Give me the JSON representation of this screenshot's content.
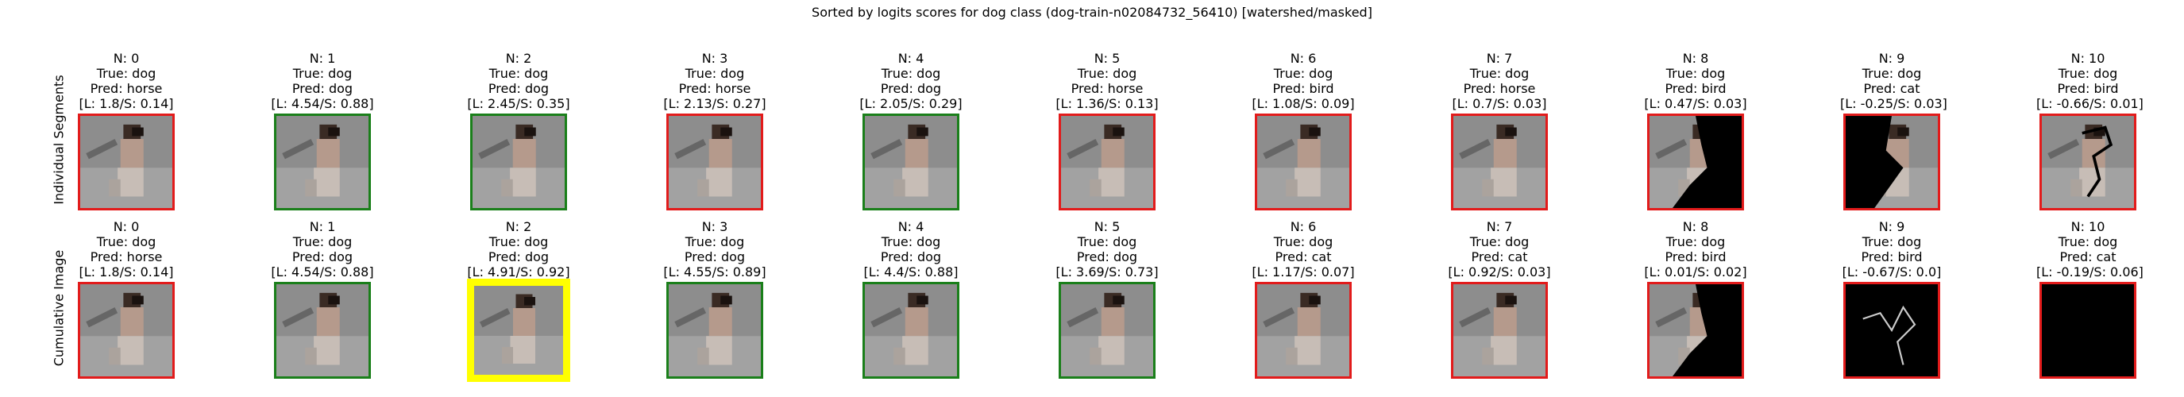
{
  "title": "Sorted by logits scores for dog class (dog-train-n02084732_56410) [watershed/masked]",
  "rows": [
    {
      "label": "Individual Segments",
      "cells": [
        {
          "n": "N: 0",
          "true": "True: dog",
          "pred": "Pred: horse",
          "score": "[L: 1.8/S: 0.14]",
          "frame": "red",
          "mask": "none"
        },
        {
          "n": "N: 1",
          "true": "True: dog",
          "pred": "Pred: dog",
          "score": "[L: 4.54/S: 0.88]",
          "frame": "green",
          "mask": "none"
        },
        {
          "n": "N: 2",
          "true": "True: dog",
          "pred": "Pred: dog",
          "score": "[L: 2.45/S: 0.35]",
          "frame": "green",
          "mask": "none"
        },
        {
          "n": "N: 3",
          "true": "True: dog",
          "pred": "Pred: horse",
          "score": "[L: 2.13/S: 0.27]",
          "frame": "red",
          "mask": "none"
        },
        {
          "n": "N: 4",
          "true": "True: dog",
          "pred": "Pred: dog",
          "score": "[L: 2.05/S: 0.29]",
          "frame": "green",
          "mask": "none"
        },
        {
          "n": "N: 5",
          "true": "True: dog",
          "pred": "Pred: horse",
          "score": "[L: 1.36/S: 0.13]",
          "frame": "red",
          "mask": "none"
        },
        {
          "n": "N: 6",
          "true": "True: dog",
          "pred": "Pred: bird",
          "score": "[L: 1.08/S: 0.09]",
          "frame": "red",
          "mask": "none"
        },
        {
          "n": "N: 7",
          "true": "True: dog",
          "pred": "Pred: horse",
          "score": "[L: 0.7/S: 0.03]",
          "frame": "red",
          "mask": "none"
        },
        {
          "n": "N: 8",
          "true": "True: dog",
          "pred": "Pred: bird",
          "score": "[L: 0.47/S: 0.03]",
          "frame": "red",
          "mask": "right"
        },
        {
          "n": "N: 9",
          "true": "True: dog",
          "pred": "Pred: cat",
          "score": "[L: -0.25/S: 0.03]",
          "frame": "red",
          "mask": "left"
        },
        {
          "n": "N: 10",
          "true": "True: dog",
          "pred": "Pred: bird",
          "score": "[L: -0.66/S: 0.01]",
          "frame": "red",
          "mask": "lines"
        }
      ]
    },
    {
      "label": "Cumulative Image",
      "cells": [
        {
          "n": "N: 0",
          "true": "True: dog",
          "pred": "Pred: horse",
          "score": "[L: 1.8/S: 0.14]",
          "frame": "red",
          "mask": "none"
        },
        {
          "n": "N: 1",
          "true": "True: dog",
          "pred": "Pred: dog",
          "score": "[L: 4.54/S: 0.88]",
          "frame": "green",
          "mask": "none"
        },
        {
          "n": "N: 2",
          "true": "True: dog",
          "pred": "Pred: dog",
          "score": "[L: 4.91/S: 0.92]",
          "frame": "yellow",
          "mask": "none"
        },
        {
          "n": "N: 3",
          "true": "True: dog",
          "pred": "Pred: dog",
          "score": "[L: 4.55/S: 0.89]",
          "frame": "green",
          "mask": "none"
        },
        {
          "n": "N: 4",
          "true": "True: dog",
          "pred": "Pred: dog",
          "score": "[L: 4.4/S: 0.88]",
          "frame": "green",
          "mask": "none"
        },
        {
          "n": "N: 5",
          "true": "True: dog",
          "pred": "Pred: dog",
          "score": "[L: 3.69/S: 0.73]",
          "frame": "green",
          "mask": "none"
        },
        {
          "n": "N: 6",
          "true": "True: dog",
          "pred": "Pred: cat",
          "score": "[L: 1.17/S: 0.07]",
          "frame": "red",
          "mask": "none"
        },
        {
          "n": "N: 7",
          "true": "True: dog",
          "pred": "Pred: cat",
          "score": "[L: 0.92/S: 0.03]",
          "frame": "red",
          "mask": "none"
        },
        {
          "n": "N: 8",
          "true": "True: dog",
          "pred": "Pred: bird",
          "score": "[L: 0.01/S: 0.02]",
          "frame": "red",
          "mask": "right"
        },
        {
          "n": "N: 9",
          "true": "True: dog",
          "pred": "Pred: bird",
          "score": "[L: -0.67/S: 0.0]",
          "frame": "red",
          "mask": "sketch"
        },
        {
          "n": "N: 10",
          "true": "True: dog",
          "pred": "Pred: cat",
          "score": "[L: -0.19/S: 0.06]",
          "frame": "red",
          "mask": "black"
        }
      ]
    }
  ]
}
